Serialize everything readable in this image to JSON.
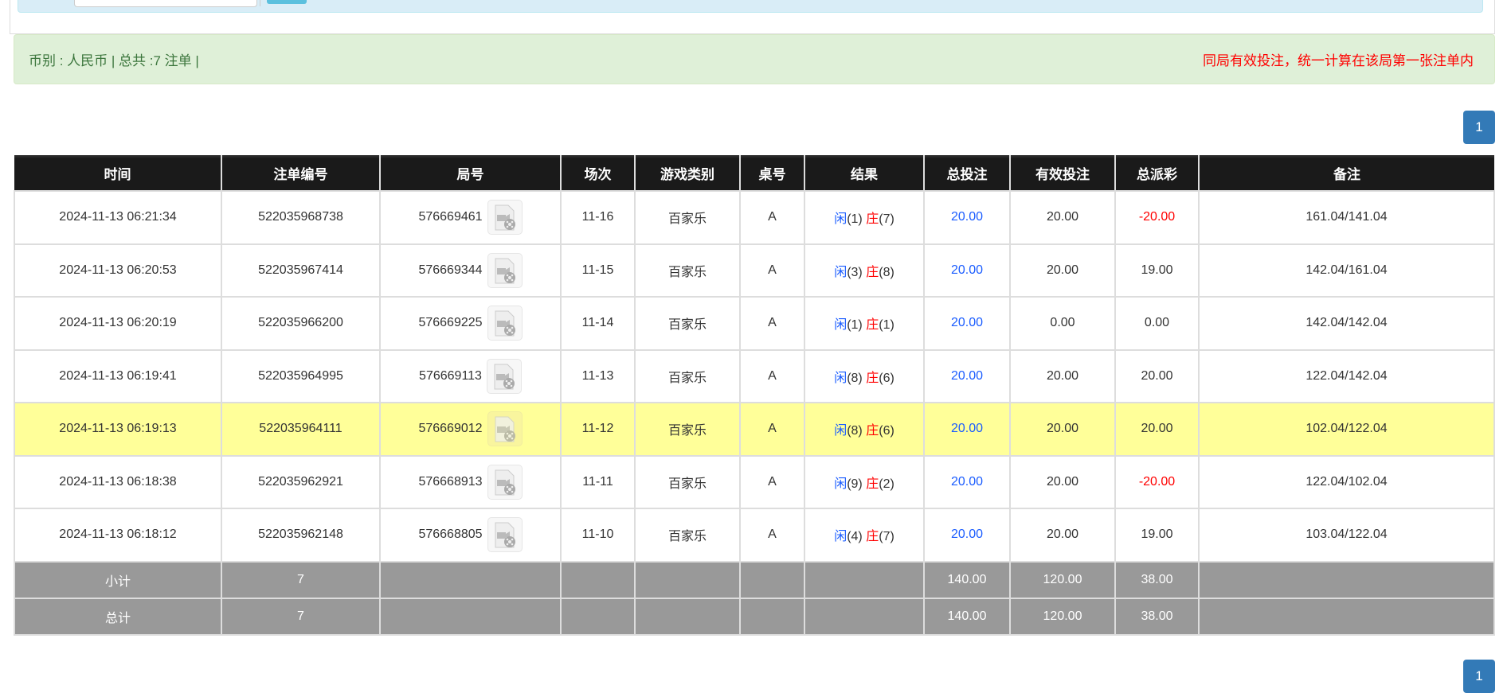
{
  "alert": {
    "left": "币别 : 人民币 | 总共 :7 注单 |",
    "right": "同局有效投注，统一计算在该局第一张注单内"
  },
  "pagination": {
    "page": "1"
  },
  "colors": {
    "player": "#1a5cff",
    "banker": "#f00",
    "negative": "#f00",
    "highlight": "#ffff99"
  },
  "table": {
    "headers": [
      "时间",
      "注单编号",
      "局号",
      "场次",
      "游戏类别",
      "桌号",
      "结果",
      "总投注",
      "有效投注",
      "总派彩",
      "备注"
    ],
    "rows": [
      {
        "time": "2024-11-13 06:21:34",
        "bet_id": "522035968738",
        "round": "576669461",
        "shoe": "11-16",
        "game": "百家乐",
        "table": "A",
        "player_label": "闲",
        "player": "(1)",
        "banker_label": "庄",
        "banker": "(7)",
        "total_bet": "20.00",
        "valid_bet": "20.00",
        "payout": "-20.00",
        "negative": true,
        "note": "161.04/141.04"
      },
      {
        "time": "2024-11-13 06:20:53",
        "bet_id": "522035967414",
        "round": "576669344",
        "shoe": "11-15",
        "game": "百家乐",
        "table": "A",
        "player_label": "闲",
        "player": "(3)",
        "banker_label": "庄",
        "banker": "(8)",
        "total_bet": "20.00",
        "valid_bet": "20.00",
        "payout": "19.00",
        "negative": false,
        "note": "142.04/161.04"
      },
      {
        "time": "2024-11-13 06:20:19",
        "bet_id": "522035966200",
        "round": "576669225",
        "shoe": "11-14",
        "game": "百家乐",
        "table": "A",
        "player_label": "闲",
        "player": "(1)",
        "banker_label": "庄",
        "banker": "(1)",
        "total_bet": "20.00",
        "valid_bet": "0.00",
        "payout": "0.00",
        "negative": false,
        "note": "142.04/142.04"
      },
      {
        "time": "2024-11-13 06:19:41",
        "bet_id": "522035964995",
        "round": "576669113",
        "shoe": "11-13",
        "game": "百家乐",
        "table": "A",
        "player_label": "闲",
        "player": "(8)",
        "banker_label": "庄",
        "banker": "(6)",
        "total_bet": "20.00",
        "valid_bet": "20.00",
        "payout": "20.00",
        "negative": false,
        "note": "122.04/142.04"
      },
      {
        "time": "2024-11-13 06:19:13",
        "bet_id": "522035964111",
        "round": "576669012",
        "shoe": "11-12",
        "game": "百家乐",
        "table": "A",
        "player_label": "闲",
        "player": "(8)",
        "banker_label": "庄",
        "banker": "(6)",
        "total_bet": "20.00",
        "valid_bet": "20.00",
        "payout": "20.00",
        "negative": false,
        "note": "102.04/122.04",
        "highlighted": true
      },
      {
        "time": "2024-11-13 06:18:38",
        "bet_id": "522035962921",
        "round": "576668913",
        "shoe": "11-11",
        "game": "百家乐",
        "table": "A",
        "player_label": "闲",
        "player": "(9)",
        "banker_label": "庄",
        "banker": "(2)",
        "total_bet": "20.00",
        "valid_bet": "20.00",
        "payout": "-20.00",
        "negative": true,
        "note": "122.04/102.04"
      },
      {
        "time": "2024-11-13 06:18:12",
        "bet_id": "522035962148",
        "round": "576668805",
        "shoe": "11-10",
        "game": "百家乐",
        "table": "A",
        "player_label": "闲",
        "player": "(4)",
        "banker_label": "庄",
        "banker": "(7)",
        "total_bet": "20.00",
        "valid_bet": "20.00",
        "payout": "19.00",
        "negative": false,
        "note": "103.04/122.04"
      }
    ],
    "summary": [
      {
        "label": "小计",
        "count": "7",
        "total_bet": "140.00",
        "valid_bet": "120.00",
        "payout": "38.00"
      },
      {
        "label": "总计",
        "count": "7",
        "total_bet": "140.00",
        "valid_bet": "120.00",
        "payout": "38.00"
      }
    ]
  },
  "icons": {
    "round_video": "video-file-icon"
  }
}
